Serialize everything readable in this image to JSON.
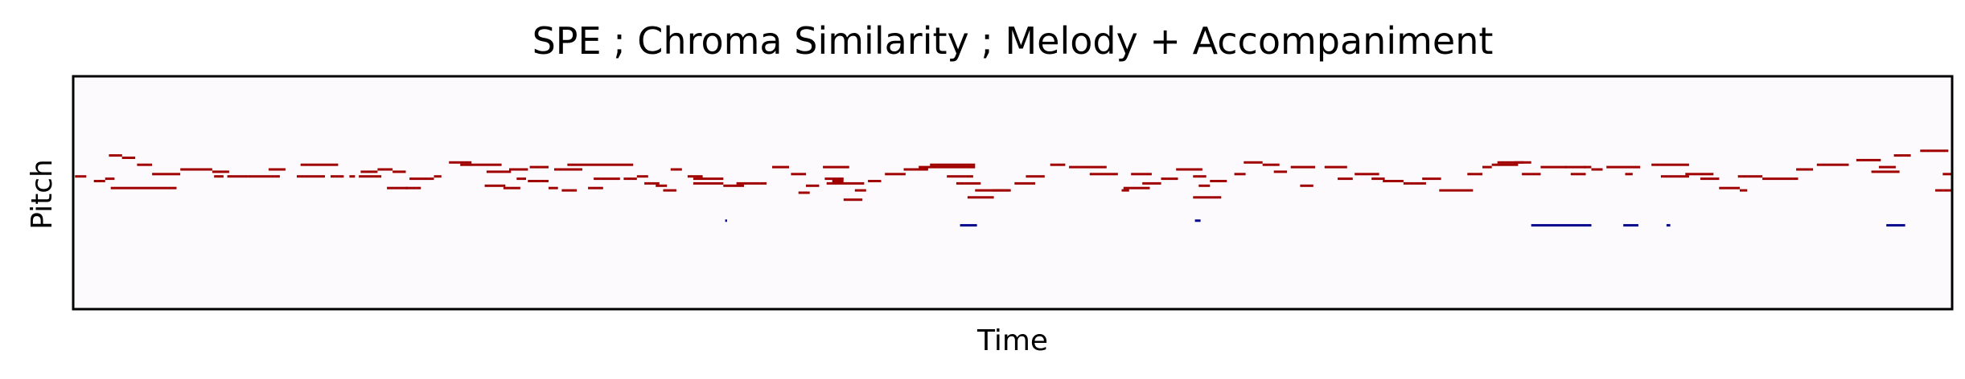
{
  "chart_data": {
    "type": "piano-roll",
    "title": "SPE ; Chroma Similarity ; Melody + Accompaniment",
    "xlabel": "Time",
    "ylabel": "Pitch",
    "x_ticks": "none",
    "y_ticks": "none",
    "grid": false,
    "background_color": "#fdfafd",
    "xlim": [
      0,
      1000
    ],
    "ylim": [
      0,
      100
    ],
    "series": [
      {
        "role": "melody",
        "color": "#a00000",
        "notes": [
          [
            1,
            7,
            57
          ],
          [
            11,
            17,
            55
          ],
          [
            17,
            22,
            56
          ],
          [
            20,
            55,
            52
          ],
          [
            19,
            26,
            66
          ],
          [
            26,
            33,
            65
          ],
          [
            34,
            42,
            62
          ],
          [
            42,
            57,
            58
          ],
          [
            57,
            74,
            60
          ],
          [
            74,
            83,
            59
          ],
          [
            75,
            80,
            57
          ],
          [
            82,
            93,
            57
          ],
          [
            93,
            110,
            57
          ],
          [
            104,
            113,
            60
          ],
          [
            121,
            141,
            62
          ],
          [
            119,
            134,
            57
          ],
          [
            137,
            144,
            57
          ],
          [
            147,
            150,
            57
          ],
          [
            152,
            164,
            57
          ],
          [
            153,
            162,
            59
          ],
          [
            162,
            170,
            60
          ],
          [
            170,
            177,
            59
          ],
          [
            167,
            178,
            52
          ],
          [
            177,
            185,
            52
          ],
          [
            179,
            192,
            56
          ],
          [
            192,
            196,
            57
          ],
          [
            200,
            212,
            63
          ],
          [
            206,
            228,
            62
          ],
          [
            219,
            230,
            53
          ],
          [
            220,
            233,
            59
          ],
          [
            232,
            242,
            60
          ],
          [
            229,
            238,
            52
          ],
          [
            236,
            241,
            56
          ],
          [
            243,
            253,
            61
          ],
          [
            242,
            253,
            55
          ],
          [
            253,
            258,
            52
          ],
          [
            256,
            271,
            60
          ],
          [
            263,
            298,
            62
          ],
          [
            260,
            268,
            51
          ],
          [
            274,
            282,
            52
          ],
          [
            293,
            300,
            56
          ],
          [
            277,
            291,
            56
          ],
          [
            300,
            306,
            57
          ],
          [
            304,
            312,
            54
          ],
          [
            310,
            316,
            53
          ],
          [
            314,
            321,
            51
          ],
          [
            318,
            324,
            60
          ],
          [
            327,
            335,
            57
          ],
          [
            330,
            346,
            56
          ],
          [
            330,
            346,
            54
          ],
          [
            346,
            357,
            53
          ],
          [
            353,
            369,
            54
          ],
          [
            372,
            381,
            61
          ],
          [
            382,
            390,
            58
          ],
          [
            386,
            392,
            50
          ],
          [
            390,
            397,
            53
          ],
          [
            399,
            413,
            61
          ],
          [
            400,
            410,
            56
          ],
          [
            404,
            410,
            55
          ],
          [
            401,
            421,
            54
          ],
          [
            416,
            422,
            51
          ],
          [
            410,
            420,
            47
          ],
          [
            423,
            430,
            55
          ],
          [
            432,
            443,
            58
          ],
          [
            442,
            455,
            60
          ],
          [
            450,
            480,
            61
          ],
          [
            456,
            480,
            62
          ],
          [
            465,
            479,
            57
          ],
          [
            470,
            483,
            54
          ],
          [
            480,
            498,
            51
          ],
          [
            476,
            490,
            48
          ],
          [
            489,
            499,
            51
          ],
          [
            501,
            512,
            54
          ],
          [
            507,
            517,
            57
          ],
          [
            520,
            528,
            62
          ],
          [
            530,
            550,
            61
          ],
          [
            541,
            556,
            58
          ],
          [
            558,
            562,
            51
          ],
          [
            559,
            573,
            52
          ],
          [
            563,
            574,
            58
          ],
          [
            569,
            579,
            54
          ],
          [
            579,
            588,
            56
          ],
          [
            587,
            601,
            60
          ],
          [
            596,
            603,
            57
          ],
          [
            605,
            614,
            55
          ],
          [
            599,
            605,
            53
          ],
          [
            596,
            611,
            48
          ],
          [
            618,
            624,
            58
          ],
          [
            623,
            633,
            63
          ],
          [
            633,
            642,
            62
          ],
          [
            639,
            646,
            59
          ],
          [
            648,
            661,
            61
          ],
          [
            653,
            660,
            53
          ],
          [
            666,
            678,
            61
          ],
          [
            673,
            681,
            56
          ],
          [
            682,
            695,
            58
          ],
          [
            691,
            698,
            56
          ],
          [
            697,
            708,
            55
          ],
          [
            708,
            720,
            54
          ],
          [
            718,
            728,
            56
          ],
          [
            727,
            745,
            51
          ],
          [
            742,
            750,
            58
          ],
          [
            750,
            755,
            61
          ],
          [
            755,
            769,
            62
          ],
          [
            758,
            772,
            63
          ],
          [
            767,
            776,
            63
          ],
          [
            771,
            781,
            58
          ],
          [
            781,
            795,
            61
          ],
          [
            794,
            805,
            61
          ],
          [
            797,
            805,
            58
          ],
          [
            804,
            808,
            61
          ],
          [
            808,
            814,
            60
          ],
          [
            816,
            834,
            61
          ],
          [
            826,
            830,
            58
          ],
          [
            840,
            860,
            62
          ],
          [
            845,
            860,
            57
          ],
          [
            858,
            873,
            58
          ],
          [
            866,
            876,
            56
          ],
          [
            876,
            887,
            52
          ],
          [
            887,
            891,
            51
          ],
          [
            886,
            899,
            57
          ],
          [
            899,
            918,
            56
          ],
          [
            917,
            926,
            60
          ],
          [
            928,
            945,
            62
          ],
          [
            949,
            962,
            64
          ],
          [
            957,
            972,
            59
          ],
          [
            961,
            970,
            61
          ],
          [
            969,
            978,
            66
          ],
          [
            983,
            998,
            68
          ],
          [
            991,
            1000,
            51
          ],
          [
            995,
            1010,
            58
          ]
        ]
      },
      {
        "role": "accompaniment",
        "color": "#00008b",
        "notes": [
          [
            347,
            348,
            38
          ],
          [
            472,
            481,
            36
          ],
          [
            597,
            600,
            38
          ],
          [
            776,
            808,
            36
          ],
          [
            825,
            833,
            36
          ],
          [
            848,
            850,
            36
          ],
          [
            965,
            975,
            36
          ]
        ]
      }
    ]
  }
}
